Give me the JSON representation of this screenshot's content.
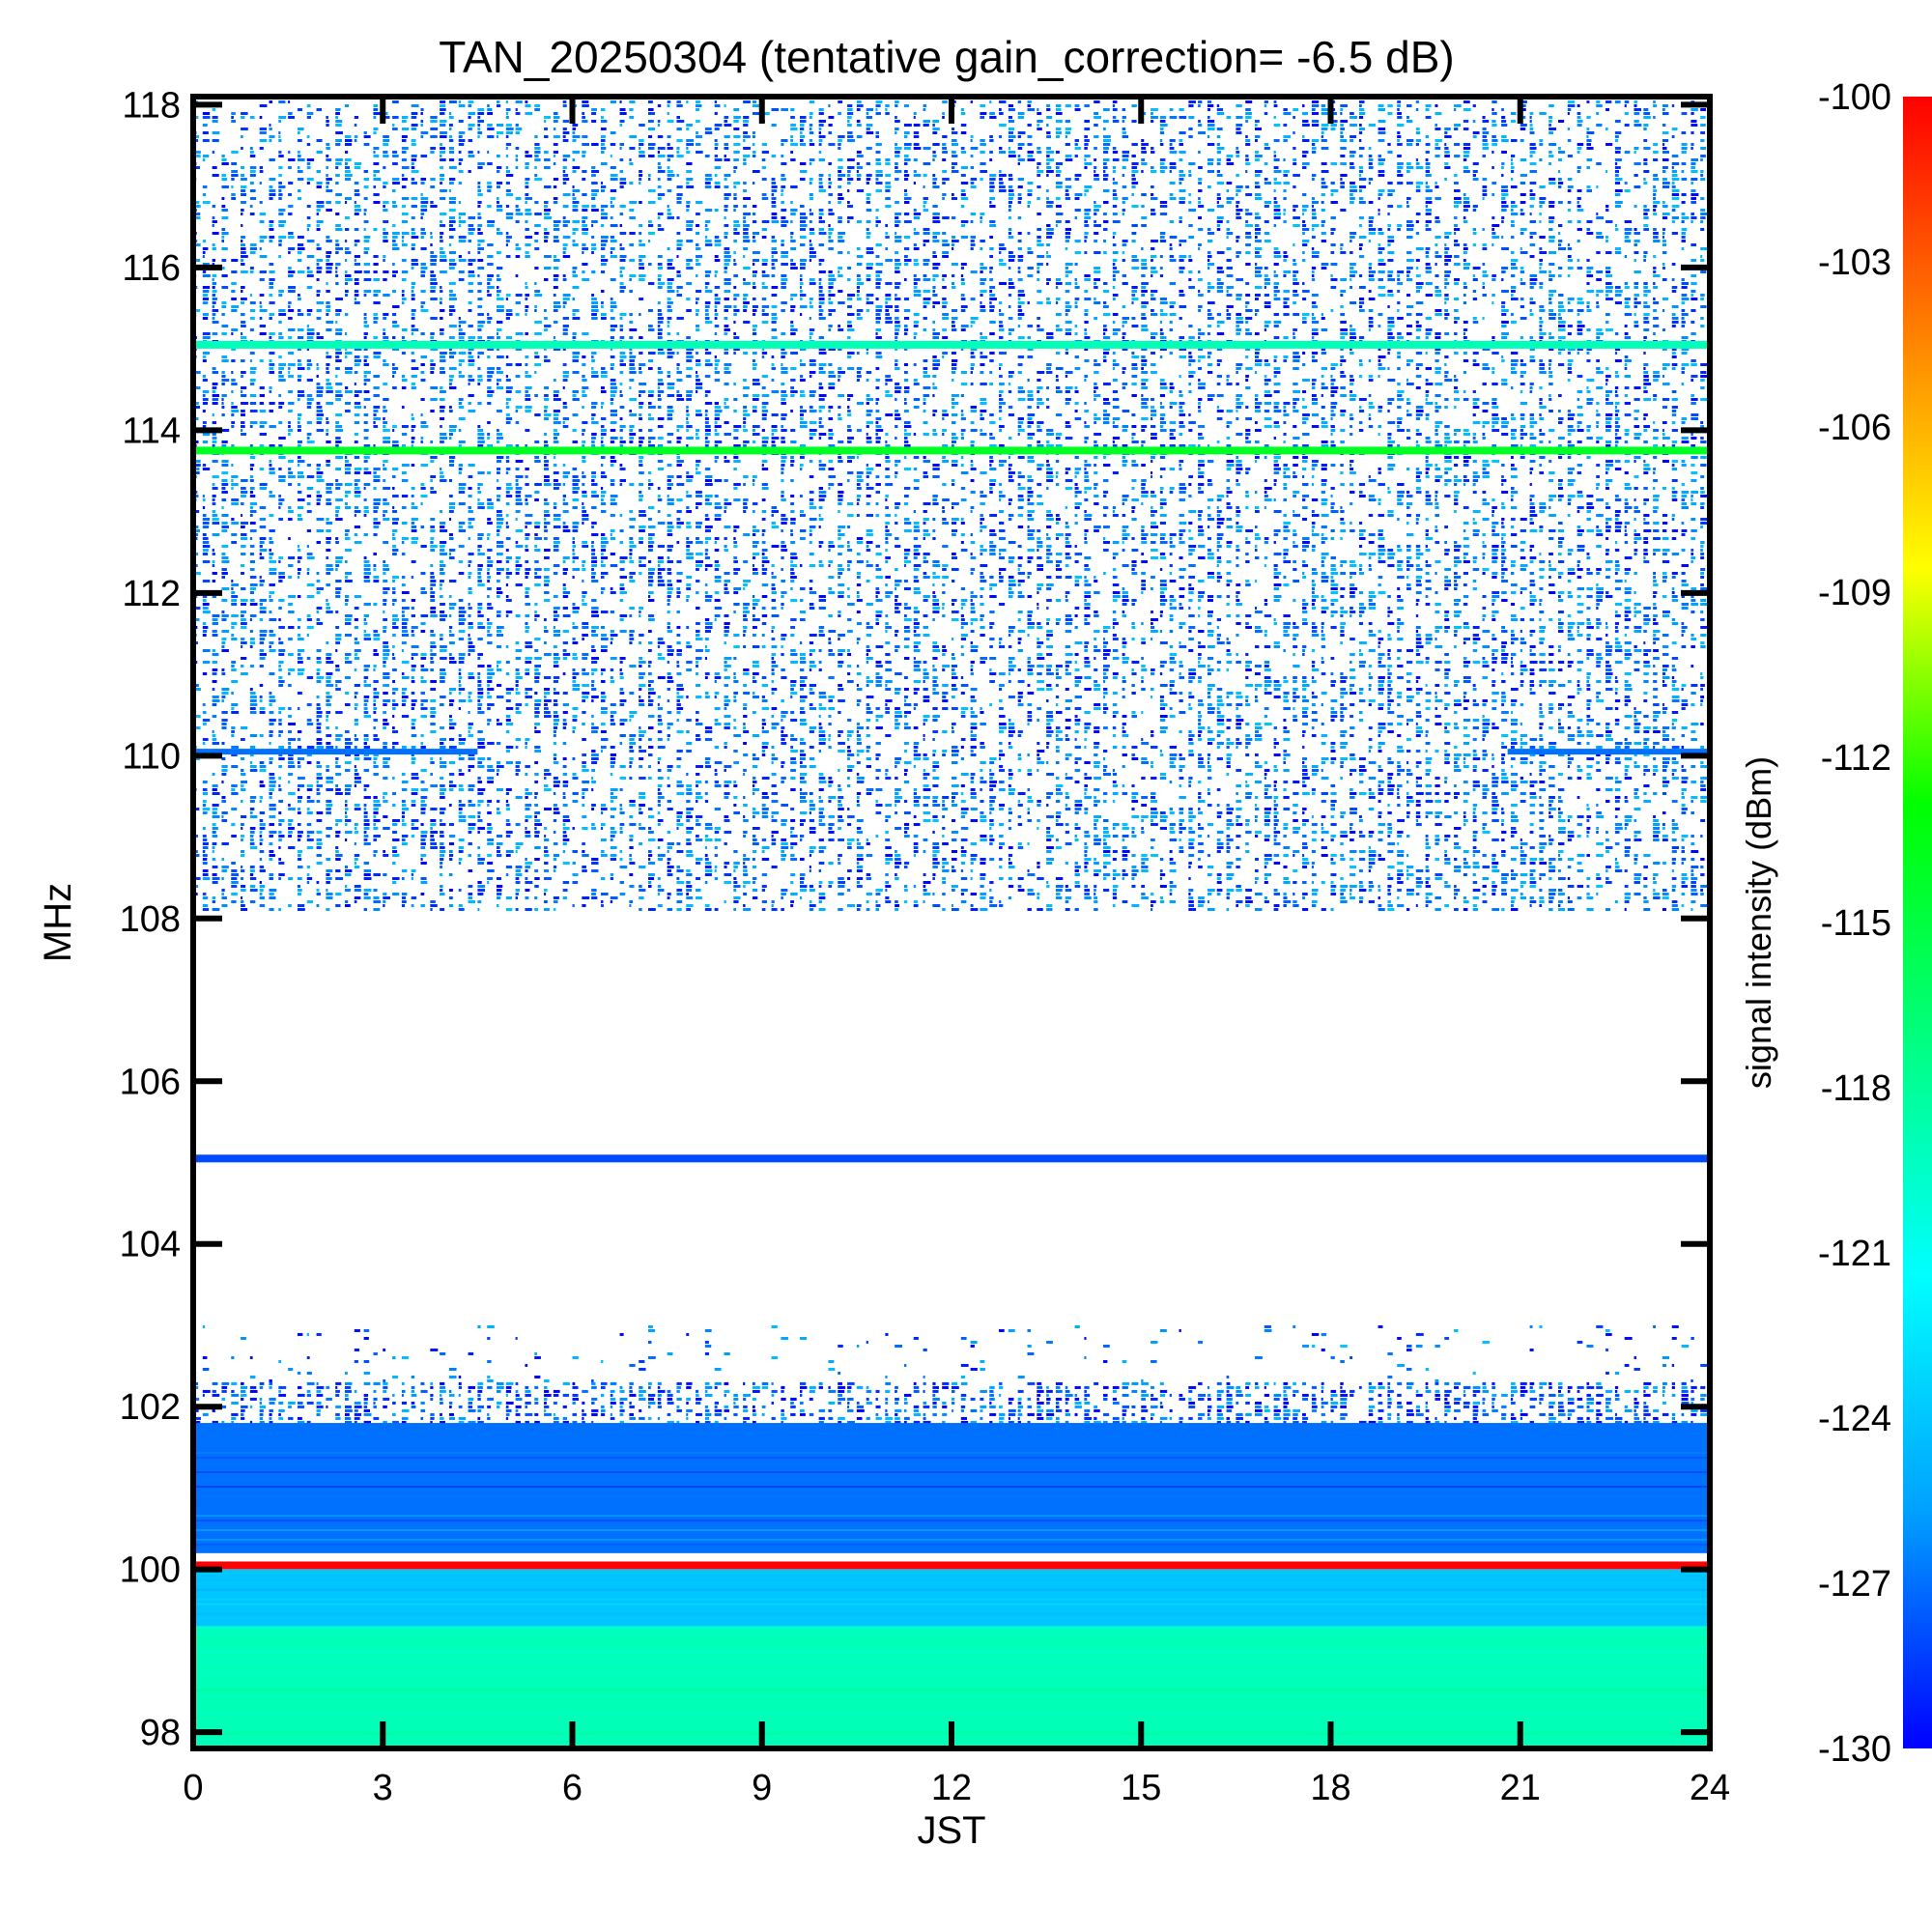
{
  "chart_data": {
    "type": "heatmap",
    "title": "TAN_20250304 (tentative gain_correction= -6.5 dB)",
    "xlabel": "JST",
    "ylabel": "MHz",
    "xlim": [
      0,
      24
    ],
    "ylim": [
      97.8,
      118.1
    ],
    "x_ticks": [
      "0",
      "3",
      "6",
      "9",
      "12",
      "15",
      "18",
      "21",
      "24"
    ],
    "y_ticks": [
      "98",
      "100",
      "102",
      "104",
      "106",
      "108",
      "110",
      "112",
      "114",
      "116",
      "118"
    ],
    "colorbar": {
      "label": "signal intensity (dBm)",
      "range": [
        -130,
        -100
      ],
      "ticks": [
        "-100",
        "-103",
        "-106",
        "-109",
        "-112",
        "-115",
        "-118",
        "-121",
        "-124",
        "-127",
        "-130"
      ],
      "colors": [
        "#0000ff",
        "#00a0ff",
        "#00ffff",
        "#00ff80",
        "#00ff00",
        "#ffff00",
        "#ff8000",
        "#ff0000"
      ]
    },
    "features": [
      {
        "freq_mhz": 115.05,
        "dbm": -119,
        "desc": "continuous line"
      },
      {
        "freq_mhz": 113.75,
        "dbm": -114,
        "desc": "continuous line"
      },
      {
        "freq_mhz": 110.05,
        "dbm": -127,
        "desc": "partial line"
      },
      {
        "freq_mhz": 105.05,
        "dbm": -128,
        "desc": "continuous line"
      },
      {
        "freq_mhz": 100.05,
        "dbm": -100,
        "desc": "strong carrier"
      }
    ],
    "bands": [
      {
        "from_mhz": 108.1,
        "to_mhz": 118.1,
        "level_dbm": -128,
        "density": 0.45
      },
      {
        "from_mhz": 102.3,
        "to_mhz": 103.0,
        "level_dbm": -128,
        "density": 0.07
      },
      {
        "from_mhz": 101.8,
        "to_mhz": 102.3,
        "level_dbm": -128.5,
        "density": 0.6
      },
      {
        "from_mhz": 100.2,
        "to_mhz": 101.8,
        "level_dbm": -127,
        "density": 1.0
      },
      {
        "from_mhz": 99.3,
        "to_mhz": 100.0,
        "level_dbm": -124,
        "density": 1.0
      },
      {
        "from_mhz": 97.8,
        "to_mhz": 99.3,
        "level_dbm": -119,
        "density": 1.0
      }
    ]
  }
}
